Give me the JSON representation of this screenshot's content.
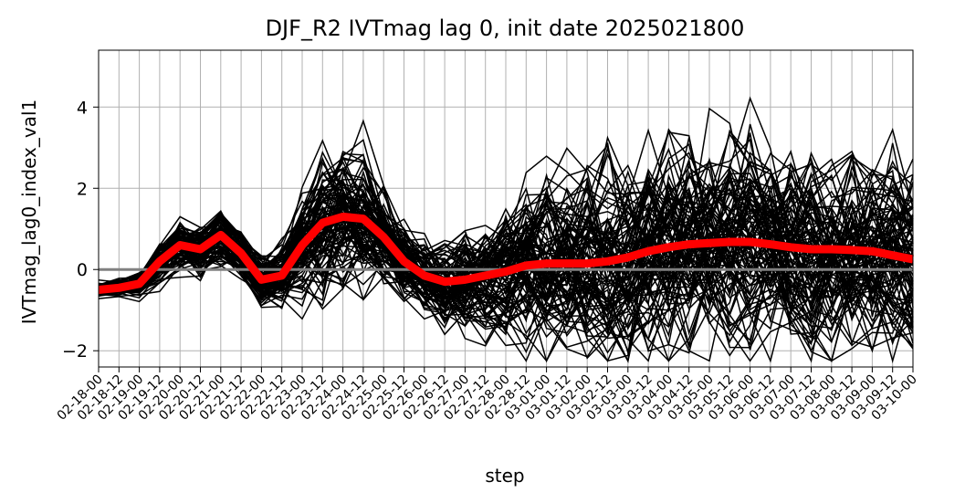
{
  "chart_data": {
    "type": "line",
    "title": "DJF_R2 IVTmag lag 0, init date 2025021800",
    "xlabel": "step",
    "ylabel": "IVTmag_lag0_index_val1",
    "ylim": [
      -2.4,
      5.4
    ],
    "yticks": [
      -2,
      0,
      2,
      4
    ],
    "grid": true,
    "categories": [
      "02-18-00",
      "02-18-12",
      "02-19-00",
      "02-19-12",
      "02-20-00",
      "02-20-12",
      "02-21-00",
      "02-21-12",
      "02-22-00",
      "02-22-12",
      "02-23-00",
      "02-23-12",
      "02-24-00",
      "02-24-12",
      "02-25-00",
      "02-25-12",
      "02-26-00",
      "02-26-12",
      "02-27-00",
      "02-27-12",
      "02-28-00",
      "02-28-12",
      "03-01-00",
      "03-01-12",
      "03-02-00",
      "03-02-12",
      "03-03-00",
      "03-03-12",
      "03-04-00",
      "03-04-12",
      "03-05-00",
      "03-05-12",
      "03-06-00",
      "03-06-12",
      "03-07-00",
      "03-07-12",
      "03-08-00",
      "03-08-12",
      "03-09-00",
      "03-09-12",
      "03-10-00"
    ],
    "ensemble": {
      "color": "#000000",
      "members": 100,
      "mean": [
        -0.5,
        -0.45,
        -0.35,
        0.2,
        0.6,
        0.5,
        0.85,
        0.4,
        -0.25,
        -0.15,
        0.6,
        1.15,
        1.3,
        1.25,
        0.8,
        0.2,
        -0.15,
        -0.3,
        -0.25,
        -0.15,
        -0.05,
        0.1,
        0.15,
        0.15,
        0.15,
        0.2,
        0.3,
        0.45,
        0.55,
        0.62,
        0.65,
        0.68,
        0.68,
        0.62,
        0.55,
        0.5,
        0.5,
        0.48,
        0.45,
        0.35,
        0.25
      ],
      "spread": [
        0.08,
        0.1,
        0.15,
        0.25,
        0.3,
        0.3,
        0.35,
        0.3,
        0.3,
        0.35,
        0.6,
        0.9,
        0.9,
        0.8,
        0.6,
        0.45,
        0.45,
        0.55,
        0.65,
        0.75,
        0.85,
        0.95,
        1.0,
        1.05,
        1.1,
        1.15,
        1.2,
        1.25,
        1.3,
        1.3,
        1.3,
        1.3,
        1.25,
        1.2,
        1.2,
        1.2,
        1.15,
        1.15,
        1.15,
        1.1,
        1.1
      ]
    },
    "mean_line": {
      "color": "#ff0000"
    },
    "zero_line": {
      "value": 0,
      "color": "#808080"
    }
  }
}
